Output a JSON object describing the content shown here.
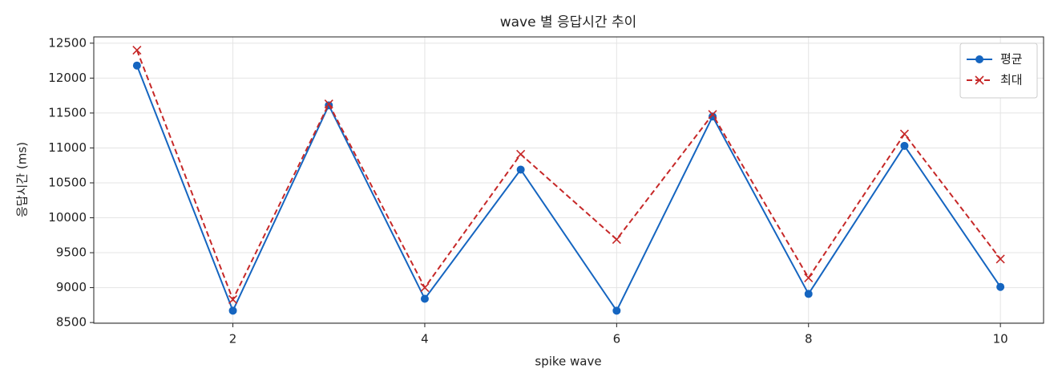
{
  "chart_data": {
    "type": "line",
    "title": "wave 별 응답시간 추이",
    "x_label": "spike wave",
    "y_label": "응답시간 (ms)",
    "x": [
      1,
      2,
      3,
      4,
      5,
      6,
      7,
      8,
      9,
      10
    ],
    "series": [
      {
        "name": "평균",
        "color": "#1565c0",
        "marker": "o",
        "linestyle": "solid",
        "values": [
          12180,
          8670,
          11610,
          8840,
          10690,
          8670,
          11450,
          8910,
          11030,
          9010
        ]
      },
      {
        "name": "최대",
        "color": "#c62828",
        "marker": "x",
        "linestyle": "dashed",
        "values": [
          12400,
          8830,
          11630,
          9000,
          10910,
          9690,
          11480,
          9140,
          11200,
          9410
        ]
      }
    ],
    "xlim": [
      0.55,
      10.45
    ],
    "ylim": [
      8490,
      12590
    ],
    "xticks": [
      2,
      4,
      6,
      8,
      10
    ],
    "yticks": [
      8500,
      9000,
      9500,
      10000,
      10500,
      11000,
      11500,
      12000,
      12500
    ],
    "grid": true,
    "legend": "upper right"
  }
}
